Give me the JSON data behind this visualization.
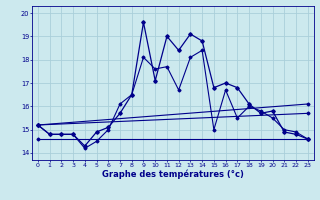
{
  "xlabel": "Graphe des températures (°c)",
  "background_color": "#cce9ee",
  "grid_color": "#aacfda",
  "line_color": "#00008b",
  "xlim": [
    -0.5,
    23.5
  ],
  "ylim": [
    13.7,
    20.3
  ],
  "yticks": [
    14,
    15,
    16,
    17,
    18,
    19,
    20
  ],
  "xticks": [
    0,
    1,
    2,
    3,
    4,
    5,
    6,
    7,
    8,
    9,
    10,
    11,
    12,
    13,
    14,
    15,
    16,
    17,
    18,
    19,
    20,
    21,
    22,
    23
  ],
  "curve1_x": [
    0,
    1,
    2,
    3,
    4,
    5,
    6,
    7,
    8,
    9,
    10,
    11,
    12,
    13,
    14,
    15,
    16,
    17,
    18,
    19,
    20,
    21,
    22,
    23
  ],
  "curve1_y": [
    15.2,
    14.8,
    14.8,
    14.8,
    14.3,
    14.9,
    15.1,
    15.7,
    16.5,
    19.6,
    17.1,
    19.0,
    18.4,
    19.1,
    18.8,
    16.8,
    17.0,
    16.8,
    16.1,
    15.7,
    15.8,
    14.9,
    14.8,
    14.6
  ],
  "curve2_x": [
    0,
    1,
    2,
    3,
    4,
    5,
    6,
    7,
    8,
    9,
    10,
    11,
    12,
    13,
    14,
    15,
    16,
    17,
    18,
    19,
    20,
    21,
    22,
    23
  ],
  "curve2_y": [
    15.2,
    14.8,
    14.8,
    14.8,
    14.2,
    14.5,
    15.0,
    16.1,
    16.5,
    18.1,
    17.6,
    17.7,
    16.7,
    18.1,
    18.4,
    15.0,
    16.7,
    15.5,
    16.0,
    15.8,
    15.5,
    15.0,
    14.9,
    14.6
  ],
  "curve3_x": [
    0,
    23
  ],
  "curve3_y": [
    14.6,
    14.6
  ],
  "curve4_x": [
    0,
    23
  ],
  "curve4_y": [
    15.2,
    16.1
  ],
  "curve5_x": [
    0,
    23
  ],
  "curve5_y": [
    15.2,
    15.7
  ]
}
